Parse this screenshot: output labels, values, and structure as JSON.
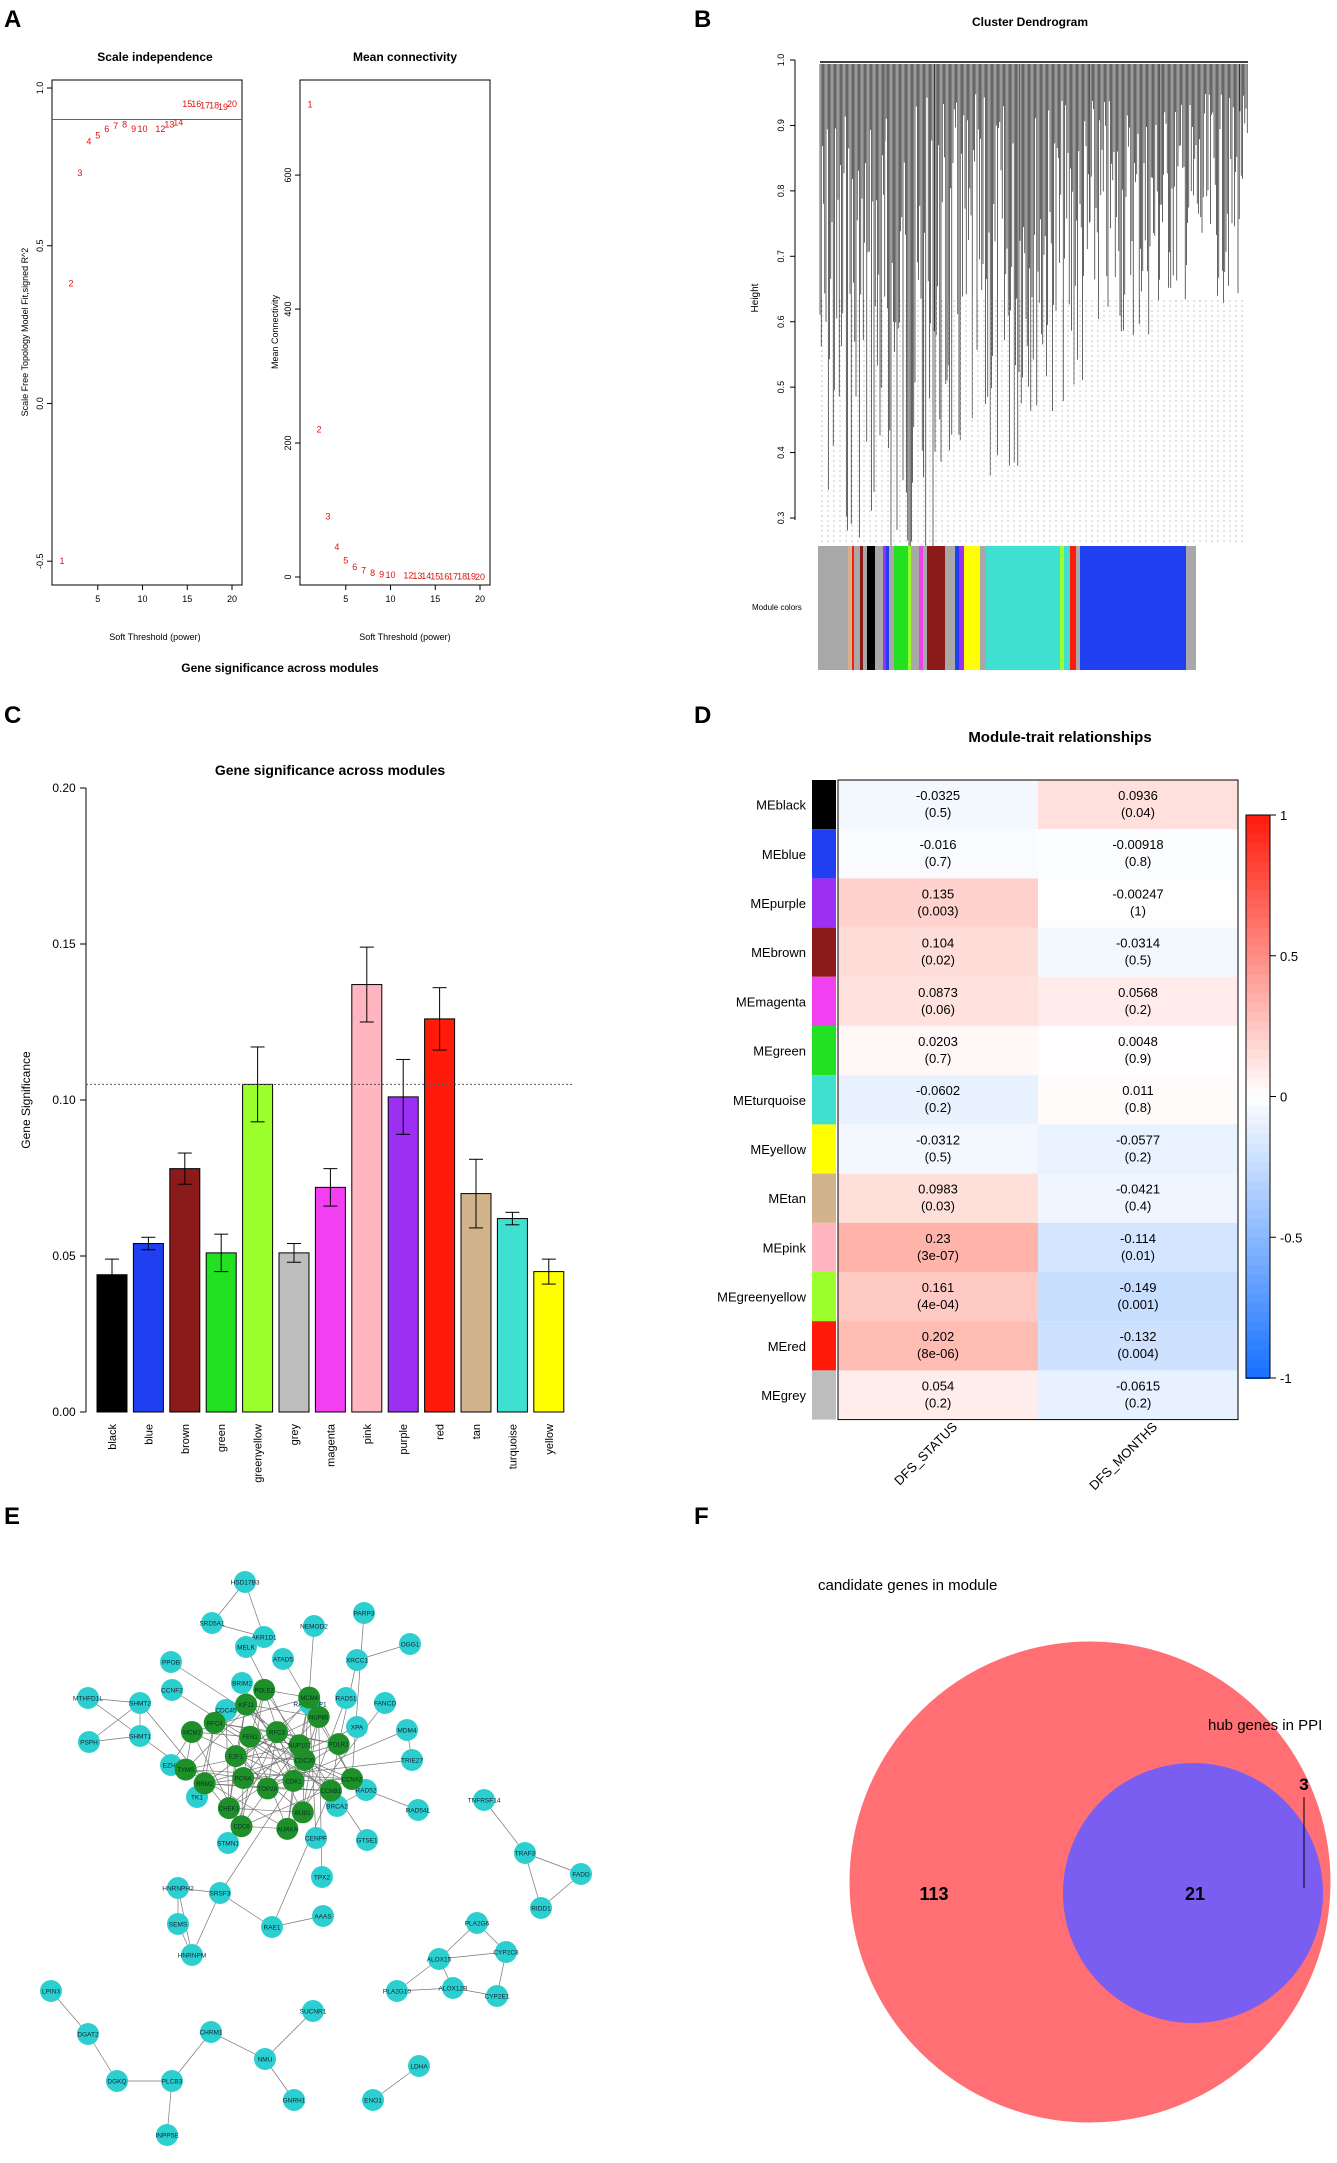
{
  "panels": {
    "A": {
      "letter": "A",
      "left_plot": {
        "title": "Scale independence",
        "xlabel": "Soft Threshold (power)",
        "ylabel": "Scale Free Topology Model Fit,signed R^2",
        "yticks": [
          "-0.5",
          "0.0",
          "0.5",
          "1.0"
        ],
        "xticks": [
          "5",
          "10",
          "15",
          "20"
        ]
      },
      "right_plot": {
        "title": "Mean connectivity",
        "xlabel": "Soft Threshold (power)",
        "ylabel": "Mean Connectivity",
        "yticks": [
          "0",
          "200",
          "400",
          "600"
        ],
        "xticks": [
          "5",
          "10",
          "15",
          "20"
        ]
      },
      "caption": "Gene significance across modules"
    },
    "B": {
      "letter": "B",
      "title": "Cluster Dendrogram",
      "ylabel": "Height",
      "yticks": [
        "0.3",
        "0.4",
        "0.5",
        "0.6",
        "0.7",
        "0.8",
        "0.9",
        "1.0"
      ],
      "module_colors_label": "Module colors"
    },
    "C": {
      "letter": "C"
    },
    "D": {
      "letter": "D"
    },
    "E": {
      "letter": "E"
    },
    "F": {
      "letter": "F"
    }
  },
  "chart_data": [
    {
      "id": "A-left",
      "type": "scatter",
      "title": "Scale independence",
      "xlabel": "Soft Threshold (power)",
      "ylabel": "Scale Free Topology Model Fit,signed R^2",
      "xlim": [
        1,
        20
      ],
      "ylim": [
        -0.55,
        1.0
      ],
      "threshold_line": 0.9,
      "points": [
        {
          "label": "1",
          "x": 1,
          "y": -0.5
        },
        {
          "label": "2",
          "x": 2,
          "y": 0.38
        },
        {
          "label": "3",
          "x": 3,
          "y": 0.73
        },
        {
          "label": "4",
          "x": 4,
          "y": 0.83
        },
        {
          "label": "5",
          "x": 5,
          "y": 0.85
        },
        {
          "label": "6",
          "x": 6,
          "y": 0.87
        },
        {
          "label": "7",
          "x": 7,
          "y": 0.88
        },
        {
          "label": "8",
          "x": 8,
          "y": 0.885
        },
        {
          "label": "9",
          "x": 9,
          "y": 0.87
        },
        {
          "label": "10",
          "x": 10,
          "y": 0.87
        },
        {
          "label": "12",
          "x": 12,
          "y": 0.87
        },
        {
          "label": "13",
          "x": 13,
          "y": 0.885
        },
        {
          "label": "14",
          "x": 14,
          "y": 0.89
        },
        {
          "label": "15",
          "x": 15,
          "y": 0.95
        },
        {
          "label": "16",
          "x": 16,
          "y": 0.95
        },
        {
          "label": "17",
          "x": 17,
          "y": 0.945
        },
        {
          "label": "18",
          "x": 18,
          "y": 0.945
        },
        {
          "label": "19",
          "x": 19,
          "y": 0.94
        },
        {
          "label": "20",
          "x": 20,
          "y": 0.95
        }
      ]
    },
    {
      "id": "A-right",
      "type": "scatter",
      "title": "Mean connectivity",
      "xlabel": "Soft Threshold (power)",
      "ylabel": "Mean Connectivity",
      "xlim": [
        1,
        20
      ],
      "ylim": [
        0,
        730
      ],
      "points": [
        {
          "label": "1",
          "x": 1,
          "y": 705
        },
        {
          "label": "2",
          "x": 2,
          "y": 220
        },
        {
          "label": "3",
          "x": 3,
          "y": 90
        },
        {
          "label": "4",
          "x": 4,
          "y": 45
        },
        {
          "label": "5",
          "x": 5,
          "y": 25
        },
        {
          "label": "6",
          "x": 6,
          "y": 15
        },
        {
          "label": "7",
          "x": 7,
          "y": 10
        },
        {
          "label": "8",
          "x": 8,
          "y": 6
        },
        {
          "label": "9",
          "x": 9,
          "y": 4
        },
        {
          "label": "10",
          "x": 10,
          "y": 3
        },
        {
          "label": "12",
          "x": 12,
          "y": 2
        },
        {
          "label": "13",
          "x": 13,
          "y": 1.5
        },
        {
          "label": "14",
          "x": 14,
          "y": 1.2
        },
        {
          "label": "15",
          "x": 15,
          "y": 1
        },
        {
          "label": "16",
          "x": 16,
          "y": 0.8
        },
        {
          "label": "17",
          "x": 17,
          "y": 0.6
        },
        {
          "label": "18",
          "x": 18,
          "y": 0.5
        },
        {
          "label": "19",
          "x": 19,
          "y": 0.4
        },
        {
          "label": "20",
          "x": 20,
          "y": 0.3
        }
      ]
    },
    {
      "id": "C",
      "type": "bar",
      "title": "Gene significance across modules",
      "ylabel": "Gene Significance",
      "ylim": [
        0,
        0.2
      ],
      "yticks": [
        "0.00",
        "0.05",
        "0.10",
        "0.15",
        "0.20"
      ],
      "reference_line": 0.105,
      "categories": [
        "black",
        "blue",
        "brown",
        "green",
        "greenyellow",
        "grey",
        "magenta",
        "pink",
        "purple",
        "red",
        "tan",
        "turquoise",
        "yellow"
      ],
      "values": [
        0.044,
        0.054,
        0.078,
        0.051,
        0.105,
        0.051,
        0.072,
        0.137,
        0.101,
        0.126,
        0.07,
        0.062,
        0.045
      ],
      "errors": [
        0.005,
        0.002,
        0.005,
        0.006,
        0.012,
        0.003,
        0.006,
        0.012,
        0.012,
        0.01,
        0.011,
        0.002,
        0.004
      ],
      "colors": [
        "#000000",
        "#1f3ff0",
        "#8b1a1a",
        "#22e022",
        "#9aff2a",
        "#bdbdbd",
        "#f23ff2",
        "#ffb6c1",
        "#9b30f2",
        "#ff1a0a",
        "#d2b48c",
        "#40e0d0",
        "#ffff00"
      ]
    },
    {
      "id": "D",
      "type": "heatmap",
      "title": "Module-trait relationships",
      "columns": [
        "DFS_STATUS",
        "DFS_MONTHS"
      ],
      "colorbar": {
        "min": -1,
        "max": 1,
        "ticks": [
          "1",
          "0.5",
          "0",
          "-0.5",
          "-1"
        ]
      },
      "rows": [
        {
          "name": "MEblack",
          "color": "#000000",
          "values": [
            -0.0325,
            0.0936
          ],
          "labels": [
            "-0.0325",
            "0.0936"
          ],
          "pvalues": [
            "(0.5)",
            "(0.04)"
          ]
        },
        {
          "name": "MEblue",
          "color": "#1f3ff0",
          "values": [
            -0.016,
            -0.00918
          ],
          "labels": [
            "-0.016",
            "-0.00918"
          ],
          "pvalues": [
            "(0.7)",
            "(0.8)"
          ]
        },
        {
          "name": "MEpurple",
          "color": "#9b30f2",
          "values": [
            0.135,
            -0.00247
          ],
          "labels": [
            "0.135",
            "-0.00247"
          ],
          "pvalues": [
            "(0.003)",
            "(1)"
          ]
        },
        {
          "name": "MEbrown",
          "color": "#8b1a1a",
          "values": [
            0.104,
            -0.0314
          ],
          "labels": [
            "0.104",
            "-0.0314"
          ],
          "pvalues": [
            "(0.02)",
            "(0.5)"
          ]
        },
        {
          "name": "MEmagenta",
          "color": "#f23ff2",
          "values": [
            0.0873,
            0.0568
          ],
          "labels": [
            "0.0873",
            "0.0568"
          ],
          "pvalues": [
            "(0.06)",
            "(0.2)"
          ]
        },
        {
          "name": "MEgreen",
          "color": "#22e022",
          "values": [
            0.0203,
            0.0048
          ],
          "labels": [
            "0.0203",
            "0.0048"
          ],
          "pvalues": [
            "(0.7)",
            "(0.9)"
          ]
        },
        {
          "name": "MEturquoise",
          "color": "#40e0d0",
          "values": [
            -0.0602,
            0.011
          ],
          "labels": [
            "-0.0602",
            "0.011"
          ],
          "pvalues": [
            "(0.2)",
            "(0.8)"
          ]
        },
        {
          "name": "MEyellow",
          "color": "#ffff00",
          "values": [
            -0.0312,
            -0.0577
          ],
          "labels": [
            "-0.0312",
            "-0.0577"
          ],
          "pvalues": [
            "(0.5)",
            "(0.2)"
          ]
        },
        {
          "name": "MEtan",
          "color": "#d2b48c",
          "values": [
            0.0983,
            -0.0421
          ],
          "labels": [
            "0.0983",
            "-0.0421"
          ],
          "pvalues": [
            "(0.03)",
            "(0.4)"
          ]
        },
        {
          "name": "MEpink",
          "color": "#ffb6c1",
          "values": [
            0.23,
            -0.114
          ],
          "labels": [
            "0.23",
            "-0.114"
          ],
          "pvalues": [
            "(3e-07)",
            "(0.01)"
          ]
        },
        {
          "name": "MEgreenyellow",
          "color": "#9aff2a",
          "values": [
            0.161,
            -0.149
          ],
          "labels": [
            "0.161",
            "-0.149"
          ],
          "pvalues": [
            "(4e-04)",
            "(0.001)"
          ]
        },
        {
          "name": "MEred",
          "color": "#ff1a0a",
          "values": [
            0.202,
            -0.132
          ],
          "labels": [
            "0.202",
            "-0.132"
          ],
          "pvalues": [
            "(8e-06)",
            "(0.004)"
          ]
        },
        {
          "name": "MEgrey",
          "color": "#bdbdbd",
          "values": [
            0.054,
            -0.0615
          ],
          "labels": [
            "0.054",
            "-0.0615"
          ],
          "pvalues": [
            "(0.2)",
            "(0.2)"
          ]
        }
      ]
    },
    {
      "id": "E",
      "type": "network",
      "hub_color": "#1f8f2a",
      "node_color": "#2ccfcf",
      "hub_nodes": [
        "CDC20",
        "CCNA2",
        "CCNB1",
        "CDK1",
        "BUB1",
        "AURKA",
        "TOP2A",
        "CDC6",
        "CHEK1",
        "PCNA",
        "RRM2",
        "TYMS",
        "E2F1",
        "MCM2",
        "RFC4",
        "FEN1",
        "KIF11",
        "POLE2",
        "RFC3",
        "MCM4",
        "NUP85",
        "NUP107",
        "POLR2"
      ],
      "nodes": [
        "HSD17B3",
        "SRD5A1",
        "AKR1D1",
        "PARP3",
        "NEMOD2",
        "OGG1",
        "MELK",
        "ATAD5",
        "XRCC1",
        "PPOB",
        "CCNF2",
        "BRIM2",
        "RAD51",
        "FANCD",
        "MDM4",
        "MTHFD1L",
        "SHMT2",
        "CDC45",
        "XPA",
        "TRIE27",
        "PSPH",
        "SHMT1",
        "RAD51AP1",
        "EZH2",
        "TK1",
        "RAD52",
        "BRCA2",
        "GTSE1",
        "RAD54L",
        "STMN1",
        "CENPF",
        "TPX2",
        "TNFRSF14",
        "HNRNPH2",
        "TRAF3",
        "FADD",
        "SRSF3",
        "RAE1",
        "AAAS",
        "RIDD1",
        "SEMS",
        "HNRNPM",
        "PLA2G6",
        "ALOX15",
        "CYP2C8",
        "PLA2G10",
        "ALOX12B",
        "CYP2E1",
        "LPIN3",
        "DGAT2",
        "CHRM1",
        "SUCNR1",
        "NMU",
        "DGKQ",
        "PLCB3",
        "GNRH1",
        "ENO1",
        "LDHA",
        "INPP5E"
      ]
    },
    {
      "id": "F",
      "type": "venn",
      "sets": [
        {
          "label": "candidate genes in module",
          "only": 113,
          "color": "#ff6f73"
        },
        {
          "label": "hub genes in PPI",
          "only": 3,
          "color": "#6a5cff"
        }
      ],
      "intersection": 21
    }
  ]
}
